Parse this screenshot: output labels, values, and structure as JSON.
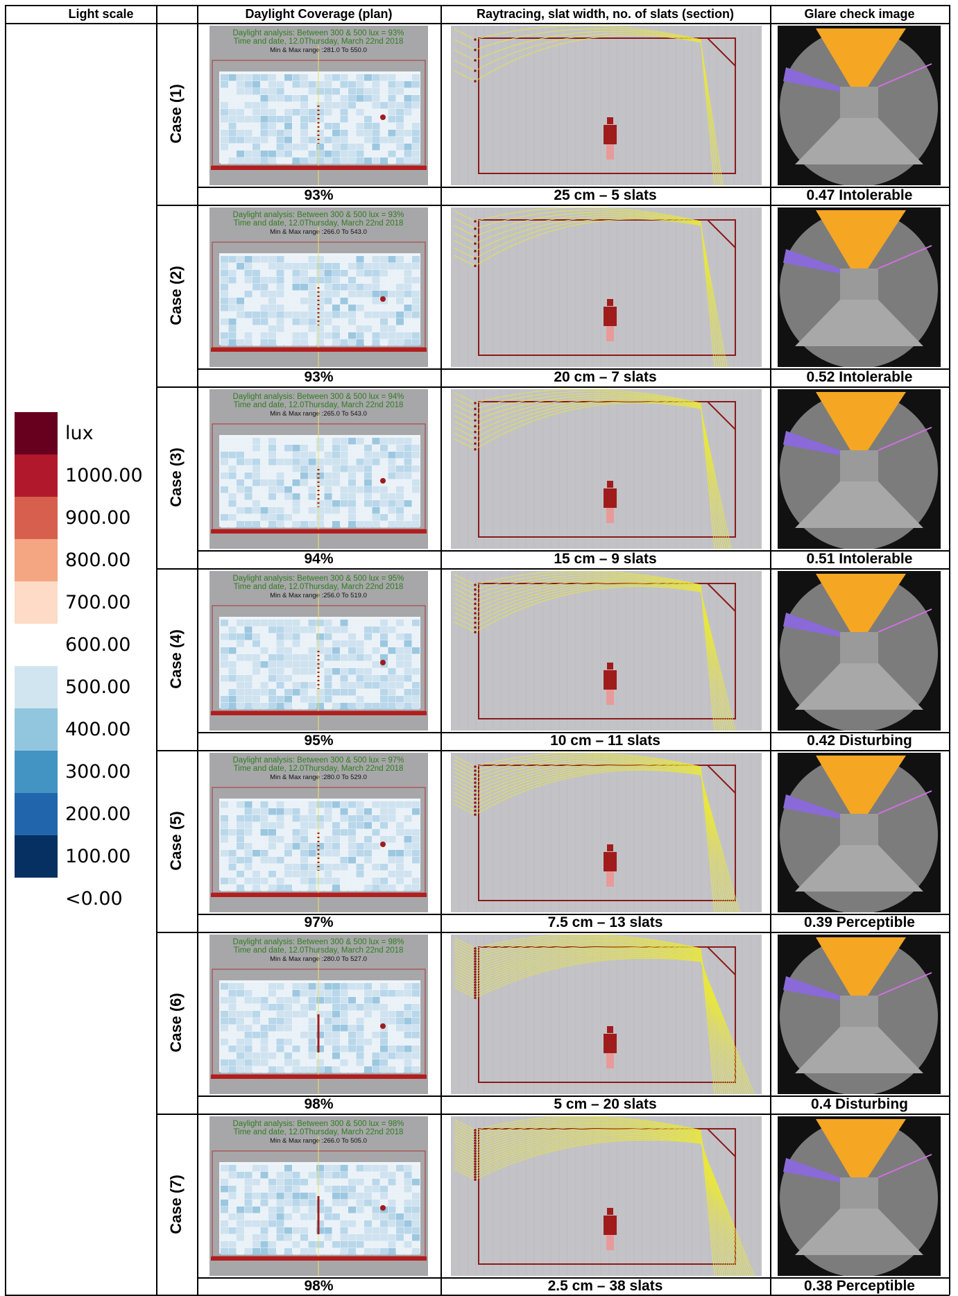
{
  "header": [
    "Light scale",
    "Daylight Coverage (plan)",
    "Raytracing, slat width, no. of slats (section)",
    "Glare check image"
  ],
  "legend": {
    "labels": [
      "lux",
      "1000.00",
      "900.00",
      "800.00",
      "700.00",
      "600.00",
      "500.00",
      "400.00",
      "300.00",
      "200.00",
      "100.00",
      "<0.00"
    ],
    "colors": [
      "#67001f",
      "#b2182b",
      "#d6604d",
      "#f4a582",
      "#fddbc7",
      "#ffffff",
      "#d1e5f0",
      "#92c5de",
      "#4393c3",
      "#2166ac",
      "#053061"
    ]
  },
  "rows": [
    {
      "label": "Case (1)",
      "plan_text": [
        "Daylight analysis: Between 300 & 500 lux = 93%",
        "Time and date, 12.0Thursday, March 22nd 2018",
        "Min & Max range :281.0 To 550.0"
      ],
      "coverage": "93%",
      "slats": "25 cm – 5 slats",
      "glare": "0.47 Intolerable"
    },
    {
      "label": "Case (2)",
      "plan_text": [
        "Daylight analysis: Between 300 & 500 lux = 93%",
        "Time and date, 12.0Thursday, March 22nd 2018",
        "Min & Max range :266.0 To 543.0"
      ],
      "coverage": "93%",
      "slats": "20 cm – 7 slats",
      "glare": "0.52 Intolerable"
    },
    {
      "label": "Case (3)",
      "plan_text": [
        "Daylight analysis: Between 300 & 500 lux = 94%",
        "Time and date, 12.0Thursday, March 22nd 2018",
        "Min & Max range :265.0 To 543.0"
      ],
      "coverage": "94%",
      "slats": "15 cm – 9 slats",
      "glare": "0.51 Intolerable"
    },
    {
      "label": "Case (4)",
      "plan_text": [
        "Daylight analysis: Between 300 & 500 lux = 95%",
        "Time and date, 12.0Thursday, March 22nd 2018",
        "Min & Max range :256.0 To 519.0"
      ],
      "coverage": "95%",
      "slats": "10 cm – 11 slats",
      "glare": "0.42 Disturbing"
    },
    {
      "label": "Case (5)",
      "plan_text": [
        "Daylight analysis: Between 300 & 500 lux = 97%",
        "Time and date, 12.0Thursday, March 22nd 2018",
        "Min & Max range :280.0 To 529.0"
      ],
      "coverage": "97%",
      "slats": "7.5 cm – 13 slats",
      "glare": "0.39 Perceptible"
    },
    {
      "label": "Case (6)",
      "plan_text": [
        "Daylight analysis: Between 300 & 500 lux = 98%",
        "Time and date, 12.0Thursday, March 22nd 2018",
        "Min & Max range :280.0 To 527.0"
      ],
      "coverage": "98%",
      "slats": "5 cm – 20 slats",
      "glare": "0.4 Disturbing"
    },
    {
      "label": "Case (7)",
      "plan_text": [
        "Daylight analysis: Between 300 & 500 lux = 98%",
        "Time and date, 12.0Thursday, March 22nd 2018",
        "Min & Max range :266.0 To 505.0"
      ],
      "coverage": "98%",
      "slats": "2.5 cm – 38 slats",
      "glare": "0.38 Perceptible"
    }
  ]
}
